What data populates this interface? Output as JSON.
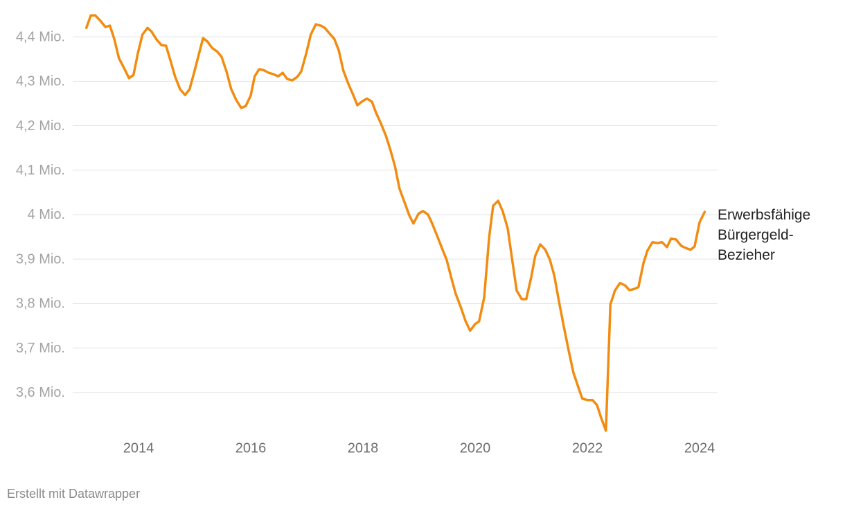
{
  "chart_data": {
    "type": "line",
    "x": [
      2013.07,
      2013.15,
      2013.23,
      2013.32,
      2013.41,
      2013.49,
      2013.57,
      2013.65,
      2013.74,
      2013.83,
      2013.91,
      2013.99,
      2014.07,
      2014.16,
      2014.23,
      2014.32,
      2014.41,
      2014.49,
      2014.57,
      2014.65,
      2014.74,
      2014.83,
      2014.91,
      2014.99,
      2015.07,
      2015.15,
      2015.23,
      2015.31,
      2015.4,
      2015.48,
      2015.57,
      2015.65,
      2015.74,
      2015.83,
      2015.91,
      2016.0,
      2016.07,
      2016.15,
      2016.23,
      2016.32,
      2016.4,
      2016.49,
      2016.57,
      2016.65,
      2016.74,
      2016.83,
      2016.9,
      2016.99,
      2017.07,
      2017.16,
      2017.25,
      2017.32,
      2017.4,
      2017.49,
      2017.57,
      2017.65,
      2017.74,
      2017.83,
      2017.9,
      2017.99,
      2018.07,
      2018.16,
      2018.23,
      2018.32,
      2018.41,
      2018.49,
      2018.57,
      2018.65,
      2018.74,
      2018.83,
      2018.9,
      2018.99,
      2019.07,
      2019.16,
      2019.23,
      2019.32,
      2019.41,
      2019.49,
      2019.57,
      2019.65,
      2019.74,
      2019.83,
      2019.91,
      2020.0,
      2020.07,
      2020.16,
      2020.25,
      2020.32,
      2020.41,
      2020.49,
      2020.58,
      2020.65,
      2020.74,
      2020.83,
      2020.91,
      2021.0,
      2021.07,
      2021.16,
      2021.25,
      2021.33,
      2021.41,
      2021.49,
      2021.58,
      2021.67,
      2021.75,
      2021.84,
      2021.91,
      2022.0,
      2022.09,
      2022.17,
      2022.25,
      2022.33,
      2022.41,
      2022.49,
      2022.58,
      2022.67,
      2022.75,
      2022.84,
      2022.91,
      2023.0,
      2023.07,
      2023.16,
      2023.25,
      2023.33,
      2023.42,
      2023.49,
      2023.58,
      2023.67,
      2023.75,
      2023.84,
      2023.91,
      2024.0,
      2024.09
    ],
    "series": [
      {
        "name": "Erwerbsfähige Bürgergeld-Bezieher",
        "color": "#f28c10",
        "values": [
          4.42,
          4.448,
          4.448,
          4.436,
          4.422,
          4.425,
          4.394,
          4.352,
          4.33,
          4.307,
          4.314,
          4.364,
          4.405,
          4.42,
          4.412,
          4.394,
          4.381,
          4.38,
          4.346,
          4.311,
          4.282,
          4.269,
          4.282,
          4.319,
          4.358,
          4.397,
          4.389,
          4.375,
          4.367,
          4.355,
          4.321,
          4.283,
          4.258,
          4.24,
          4.244,
          4.268,
          4.311,
          4.327,
          4.325,
          4.319,
          4.316,
          4.311,
          4.319,
          4.305,
          4.302,
          4.31,
          4.322,
          4.363,
          4.405,
          4.428,
          4.425,
          4.42,
          4.408,
          4.395,
          4.369,
          4.324,
          4.294,
          4.268,
          4.246,
          4.255,
          4.261,
          4.254,
          4.23,
          4.205,
          4.177,
          4.145,
          4.109,
          4.059,
          4.028,
          3.997,
          3.98,
          4.002,
          4.008,
          4.0,
          3.981,
          3.953,
          3.924,
          3.899,
          3.86,
          3.823,
          3.793,
          3.76,
          3.739,
          3.754,
          3.76,
          3.813,
          3.95,
          4.02,
          4.031,
          4.008,
          3.969,
          3.907,
          3.829,
          3.81,
          3.81,
          3.86,
          3.907,
          3.933,
          3.921,
          3.899,
          3.863,
          3.807,
          3.748,
          3.692,
          3.645,
          3.611,
          3.586,
          3.583,
          3.583,
          3.572,
          3.541,
          3.514,
          3.798,
          3.829,
          3.846,
          3.841,
          3.83,
          3.833,
          3.837,
          3.891,
          3.919,
          3.938,
          3.936,
          3.938,
          3.927,
          3.946,
          3.944,
          3.93,
          3.925,
          3.921,
          3.928,
          3.983,
          4.006
        ]
      }
    ],
    "xlim": [
      2013,
      2024.32
    ],
    "xticks": [
      2014,
      2016,
      2018,
      2020,
      2022,
      2024
    ],
    "ylim": [
      3.5,
      4.45
    ],
    "yticks": [
      {
        "value": 3.6,
        "label": "3,6 Mio."
      },
      {
        "value": 3.7,
        "label": "3,7 Mio."
      },
      {
        "value": 3.8,
        "label": "3,8 Mio."
      },
      {
        "value": 3.9,
        "label": "3,9 Mio."
      },
      {
        "value": 4,
        "label": "4 Mio."
      },
      {
        "value": 4.1,
        "label": "4,1 Mio."
      },
      {
        "value": 4.2,
        "label": "4,2 Mio."
      },
      {
        "value": 4.3,
        "label": "4,3 Mio."
      },
      {
        "value": 4.4,
        "label": "4,4 Mio."
      }
    ],
    "grid": true
  },
  "footer": "Erstellt mit Datawrapper"
}
